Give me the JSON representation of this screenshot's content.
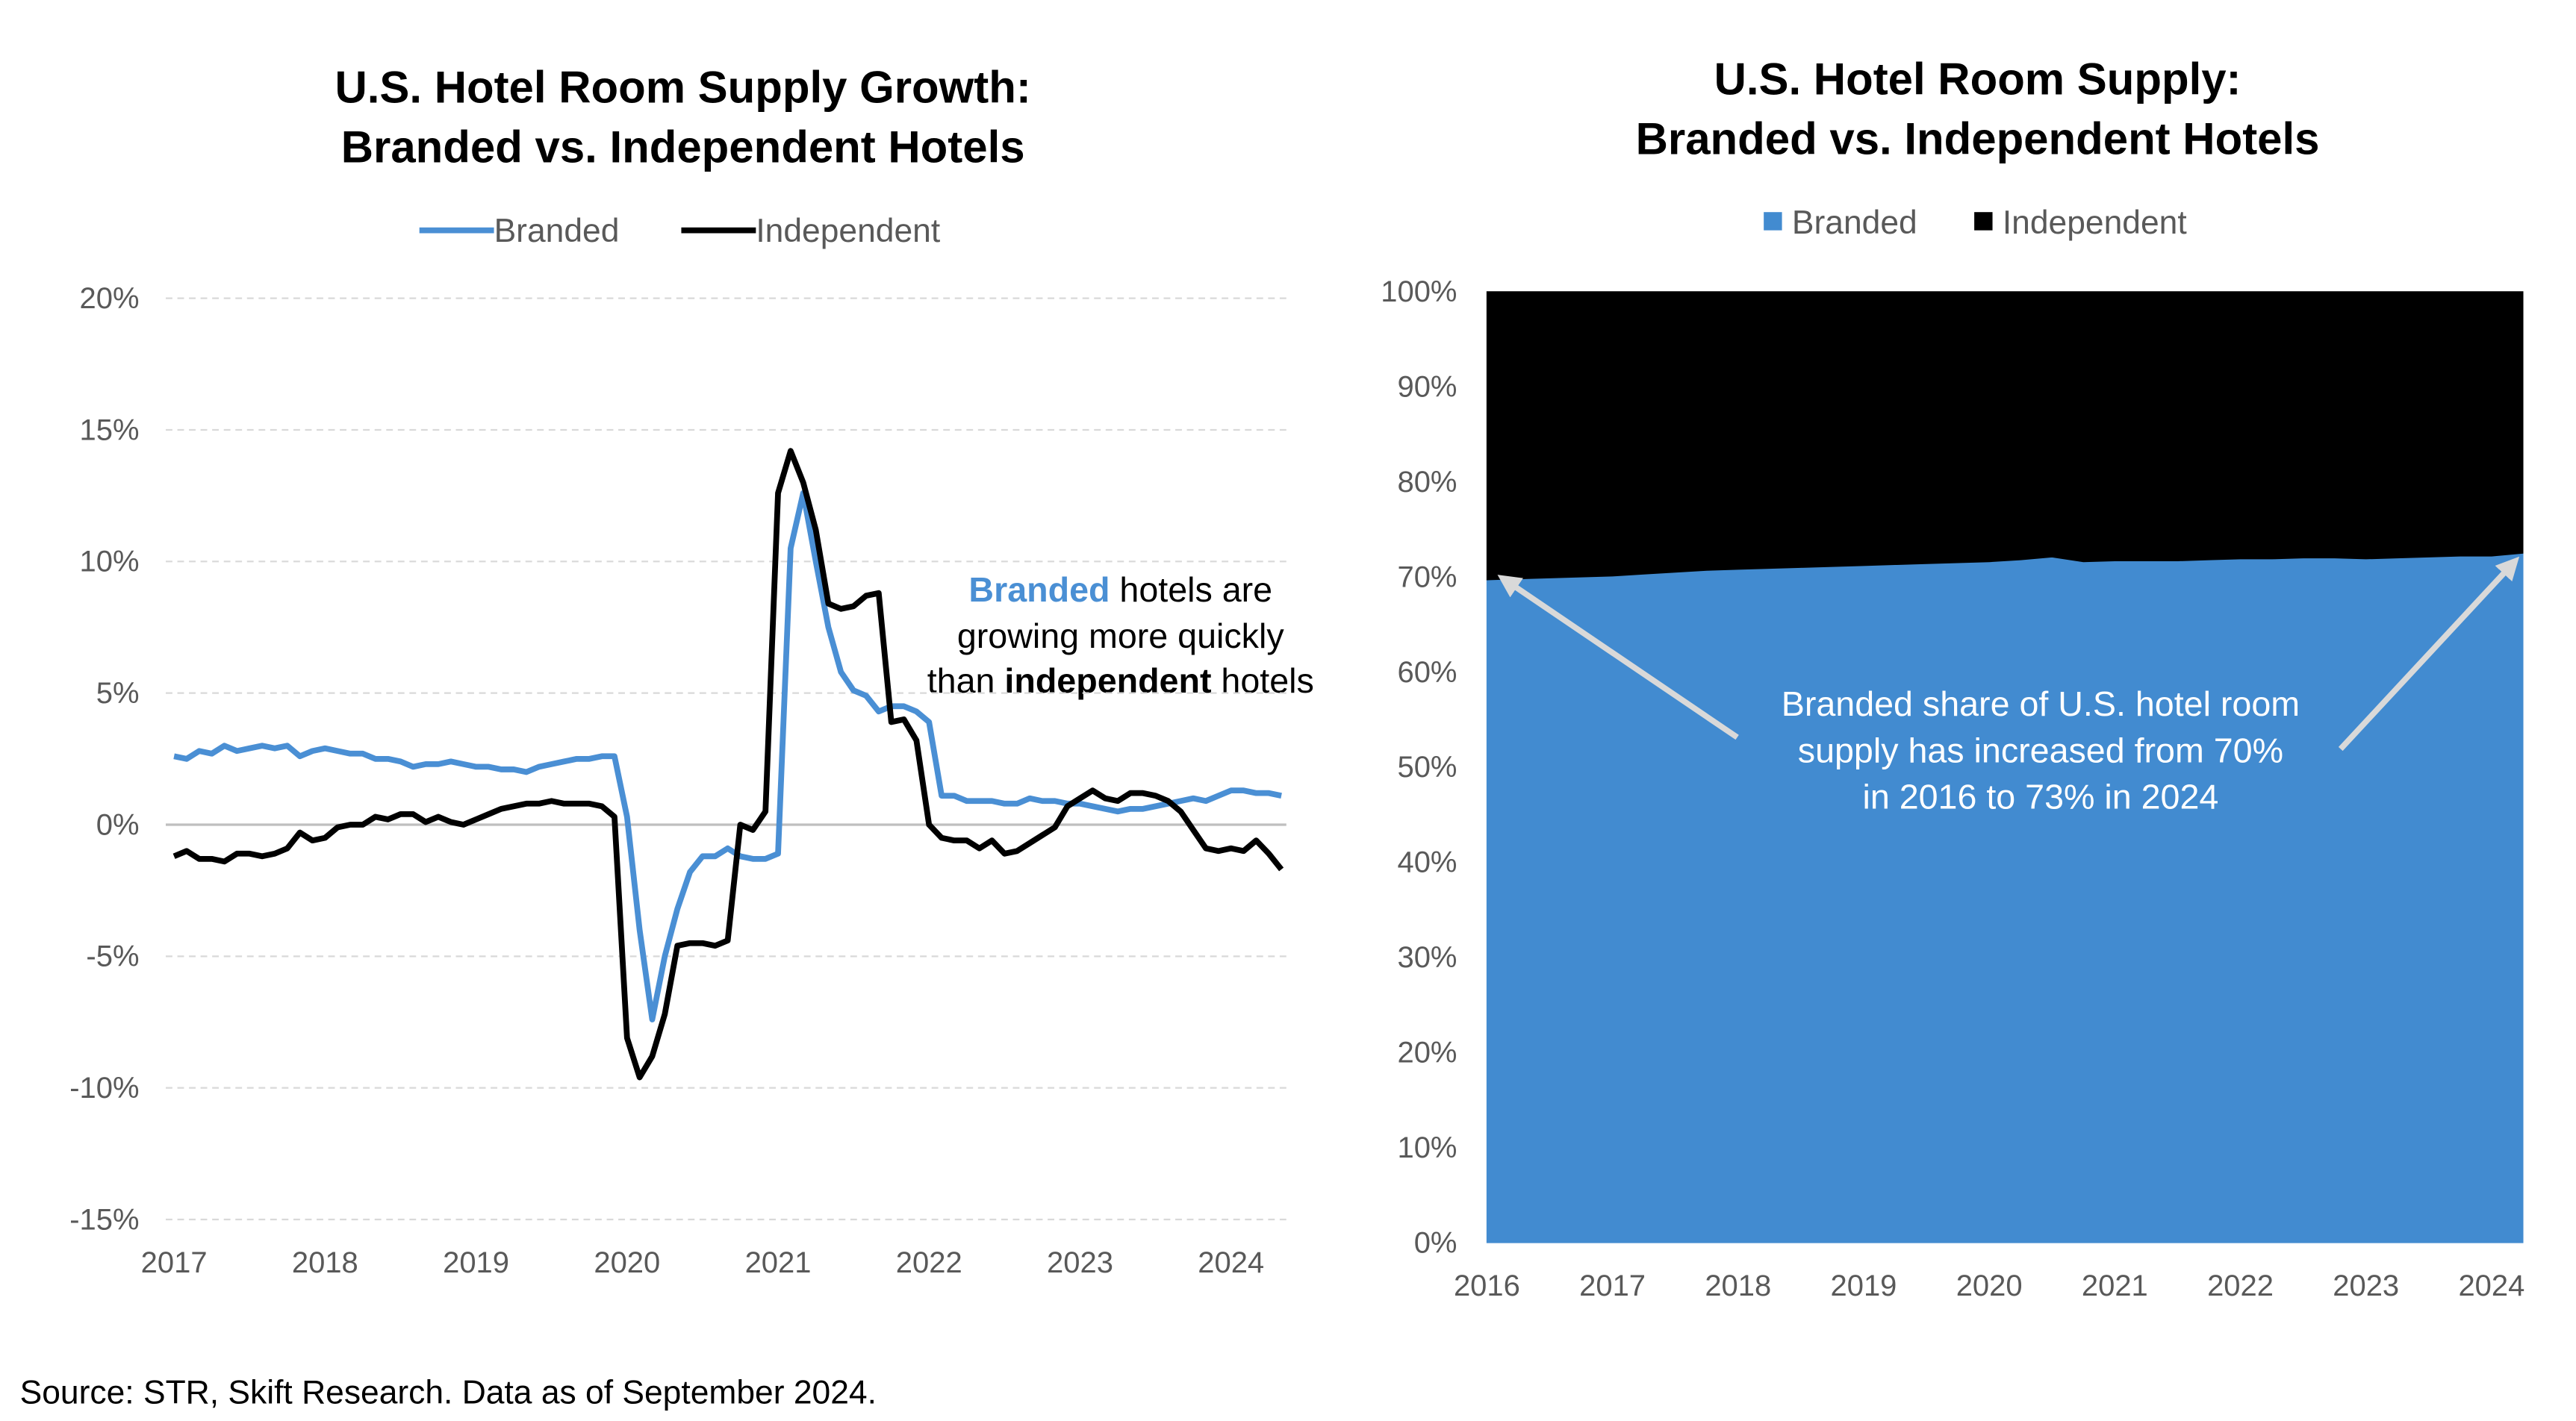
{
  "chart_data": [
    {
      "type": "line",
      "title": [
        "U.S. Hotel Room Supply Growth:",
        "Branded vs. Independent Hotels"
      ],
      "annotation": [
        [
          "Branded",
          " hotels are"
        ],
        [
          "growing more quickly"
        ],
        [
          "than ",
          "independent",
          " hotels"
        ]
      ],
      "categories": [
        "2017",
        null,
        null,
        null,
        null,
        null,
        null,
        null,
        null,
        null,
        null,
        null,
        "2018",
        null,
        null,
        null,
        null,
        null,
        null,
        null,
        null,
        null,
        null,
        null,
        "2019",
        null,
        null,
        null,
        null,
        null,
        null,
        null,
        null,
        null,
        null,
        null,
        "2020",
        null,
        null,
        null,
        null,
        null,
        null,
        null,
        null,
        null,
        null,
        null,
        "2021",
        null,
        null,
        null,
        null,
        null,
        null,
        null,
        null,
        null,
        null,
        null,
        "2022",
        null,
        null,
        null,
        null,
        null,
        null,
        null,
        null,
        null,
        null,
        null,
        "2023",
        null,
        null,
        null,
        null,
        null,
        null,
        null,
        null,
        null,
        null,
        null,
        "2024",
        null,
        null,
        null,
        null
      ],
      "series": [
        {
          "name": "Branded",
          "color": "#4a8fd4",
          "values": [
            2.6,
            2.5,
            2.8,
            2.7,
            3.0,
            2.8,
            2.9,
            3.0,
            2.9,
            3.0,
            2.6,
            2.8,
            2.9,
            2.8,
            2.7,
            2.7,
            2.5,
            2.5,
            2.4,
            2.2,
            2.3,
            2.3,
            2.4,
            2.3,
            2.2,
            2.2,
            2.1,
            2.1,
            2.0,
            2.2,
            2.3,
            2.4,
            2.5,
            2.5,
            2.6,
            2.6,
            0.3,
            -4.0,
            -7.4,
            -5.0,
            -3.2,
            -1.8,
            -1.2,
            -1.2,
            -0.9,
            -1.2,
            -1.3,
            -1.3,
            -1.1,
            10.5,
            12.6,
            10.0,
            7.5,
            5.8,
            5.1,
            4.9,
            4.3,
            4.5,
            4.5,
            4.3,
            3.9,
            1.1,
            1.1,
            0.9,
            0.9,
            0.9,
            0.8,
            0.8,
            1.0,
            0.9,
            0.9,
            0.8,
            0.8,
            0.7,
            0.6,
            0.5,
            0.6,
            0.6,
            0.7,
            0.8,
            0.9,
            1.0,
            0.9,
            1.1,
            1.3,
            1.3,
            1.2,
            1.2,
            1.1
          ]
        },
        {
          "name": "Independent",
          "color": "#000000",
          "values": [
            -1.2,
            -1.0,
            -1.3,
            -1.3,
            -1.4,
            -1.1,
            -1.1,
            -1.2,
            -1.1,
            -0.9,
            -0.3,
            -0.6,
            -0.5,
            -0.1,
            0.0,
            0.0,
            0.3,
            0.2,
            0.4,
            0.4,
            0.1,
            0.3,
            0.1,
            0.0,
            0.2,
            0.4,
            0.6,
            0.7,
            0.8,
            0.8,
            0.9,
            0.8,
            0.8,
            0.8,
            0.7,
            0.3,
            -8.1,
            -9.6,
            -8.8,
            -7.2,
            -4.6,
            -4.5,
            -4.5,
            -4.6,
            -4.4,
            0.0,
            -0.2,
            0.5,
            12.6,
            14.2,
            13.0,
            11.2,
            8.4,
            8.2,
            8.3,
            8.7,
            8.8,
            3.9,
            4.0,
            3.2,
            0.0,
            -0.5,
            -0.6,
            -0.6,
            -0.9,
            -0.6,
            -1.1,
            -1.0,
            -0.7,
            -0.4,
            -0.1,
            0.7,
            1.0,
            1.3,
            1.0,
            0.9,
            1.2,
            1.2,
            1.1,
            0.9,
            0.5,
            -0.2,
            -0.9,
            -1.0,
            -0.9,
            -1.0,
            -0.6,
            -1.1,
            -1.7
          ]
        }
      ],
      "ylim": [
        -15,
        20
      ],
      "yticks": [
        {
          "value": -15,
          "label": "-15%"
        },
        {
          "value": -10,
          "label": "-10%"
        },
        {
          "value": -5,
          "label": "-5%"
        },
        {
          "value": 0,
          "label": "0%"
        },
        {
          "value": 5,
          "label": "5%"
        },
        {
          "value": 10,
          "label": "10%"
        },
        {
          "value": 15,
          "label": "15%"
        },
        {
          "value": 20,
          "label": "20%"
        }
      ],
      "grid": true,
      "legend": "top"
    },
    {
      "type": "area",
      "title": [
        "U.S. Hotel Room Supply:",
        "Branded vs. Independent Hotels"
      ],
      "annotation": [
        "Branded share of U.S. hotel room",
        "supply has increased from 70%",
        "in 2016 to 73% in 2024"
      ],
      "categories": [
        "2016",
        null,
        null,
        null,
        "2017",
        null,
        null,
        null,
        "2018",
        null,
        null,
        null,
        "2019",
        null,
        null,
        null,
        "2020",
        null,
        null,
        null,
        "2021",
        null,
        null,
        null,
        "2022",
        null,
        null,
        null,
        "2023",
        null,
        null,
        null,
        "2024",
        null
      ],
      "series": [
        {
          "name": "Branded",
          "color": "#428bd0",
          "values": [
            69.7,
            69.8,
            69.9,
            70.0,
            70.1,
            70.3,
            70.5,
            70.7,
            70.8,
            70.9,
            71.0,
            71.1,
            71.2,
            71.3,
            71.4,
            71.5,
            71.6,
            71.8,
            72.1,
            71.6,
            71.7,
            71.7,
            71.7,
            71.8,
            71.9,
            71.9,
            72.0,
            72.0,
            71.9,
            72.0,
            72.1,
            72.2,
            72.2,
            72.5
          ]
        },
        {
          "name": "Independent",
          "color": "#000000",
          "values": [
            30.3,
            30.2,
            30.1,
            30.0,
            29.9,
            29.7,
            29.5,
            29.3,
            29.2,
            29.1,
            29.0,
            28.9,
            28.8,
            28.7,
            28.6,
            28.5,
            28.4,
            28.2,
            27.9,
            28.4,
            28.3,
            28.3,
            28.3,
            28.2,
            28.1,
            28.1,
            28.0,
            28.0,
            28.1,
            28.0,
            27.9,
            27.8,
            27.8,
            27.5
          ]
        }
      ],
      "stacked": true,
      "ylim": [
        0,
        100
      ],
      "yticks": [
        {
          "value": 0,
          "label": "0%"
        },
        {
          "value": 10,
          "label": "10%"
        },
        {
          "value": 20,
          "label": "20%"
        },
        {
          "value": 30,
          "label": "30%"
        },
        {
          "value": 40,
          "label": "40%"
        },
        {
          "value": 50,
          "label": "50%"
        },
        {
          "value": 60,
          "label": "60%"
        },
        {
          "value": 70,
          "label": "70%"
        },
        {
          "value": 80,
          "label": "80%"
        },
        {
          "value": 90,
          "label": "90%"
        },
        {
          "value": 100,
          "label": "100%"
        }
      ],
      "grid": false,
      "legend": "top"
    }
  ],
  "source": "Source: STR, Skift Research. Data as of September 2024."
}
